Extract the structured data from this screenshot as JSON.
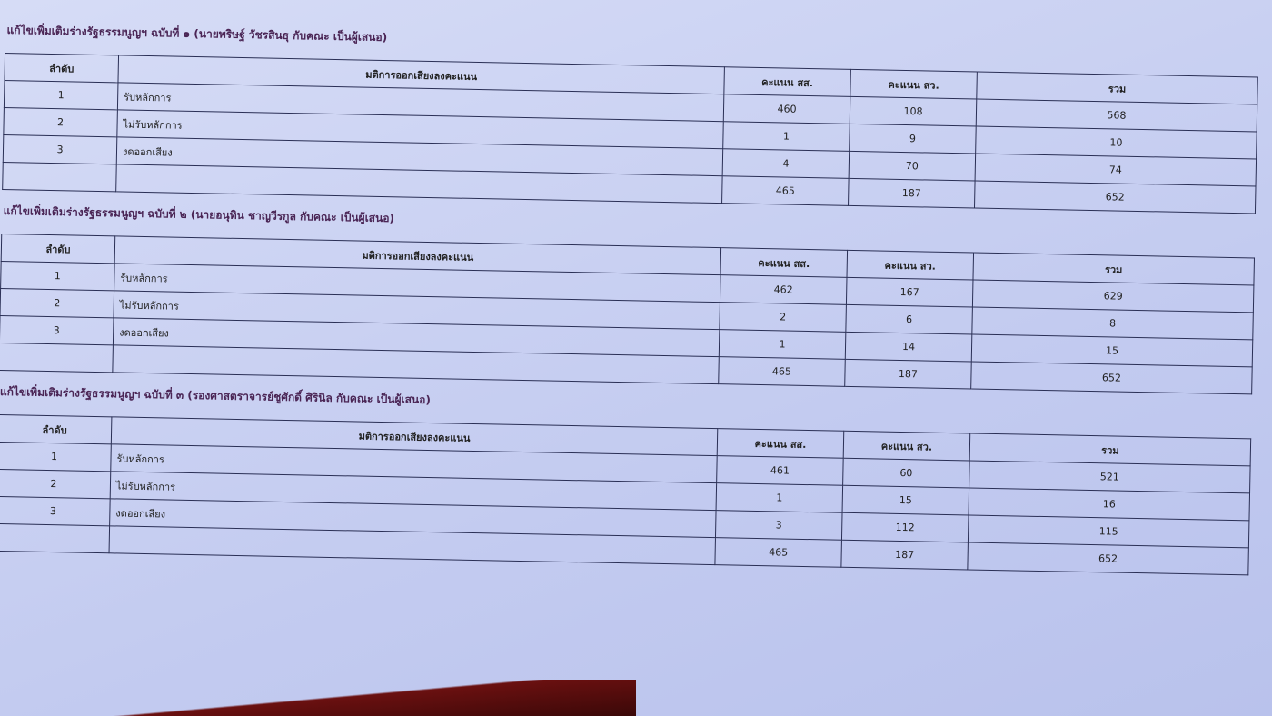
{
  "headers": {
    "no": "ลำดับ",
    "resolution": "มติการออกเสียงลงคะแนน",
    "mp": "คะแนน สส.",
    "senator": "คะแนน สว.",
    "total": "รวม"
  },
  "tables": [
    {
      "title": "แก้ไขเพิ่มเติมร่างรัฐธรรมนูญฯ ฉบับที่ ๑ (นายพริษฐ์ วัชรสินธุ กับคณะ เป็นผู้เสนอ)",
      "rows": [
        {
          "no": "1",
          "label": "รับหลักการ",
          "mp": "460",
          "sen": "108",
          "total": "568"
        },
        {
          "no": "2",
          "label": "ไม่รับหลักการ",
          "mp": "1",
          "sen": "9",
          "total": "10"
        },
        {
          "no": "3",
          "label": "งดออกเสียง",
          "mp": "4",
          "sen": "70",
          "total": "74"
        },
        {
          "no": "",
          "label": "",
          "mp": "465",
          "sen": "187",
          "total": "652"
        }
      ]
    },
    {
      "title": "แก้ไขเพิ่มเติมร่างรัฐธรรมนูญฯ ฉบับที่ ๒ (นายอนุทิน ชาญวีรกูล กับคณะ เป็นผู้เสนอ)",
      "rows": [
        {
          "no": "1",
          "label": "รับหลักการ",
          "mp": "462",
          "sen": "167",
          "total": "629"
        },
        {
          "no": "2",
          "label": "ไม่รับหลักการ",
          "mp": "2",
          "sen": "6",
          "total": "8"
        },
        {
          "no": "3",
          "label": "งดออกเสียง",
          "mp": "1",
          "sen": "14",
          "total": "15"
        },
        {
          "no": "",
          "label": "",
          "mp": "465",
          "sen": "187",
          "total": "652"
        }
      ]
    },
    {
      "title": "แก้ไขเพิ่มเติมร่างรัฐธรรมนูญฯ ฉบับที่ ๓ (รองศาสตราจารย์ชูศักดิ์ ศิรินิล กับคณะ เป็นผู้เสนอ)",
      "rows": [
        {
          "no": "1",
          "label": "รับหลักการ",
          "mp": "461",
          "sen": "60",
          "total": "521"
        },
        {
          "no": "2",
          "label": "ไม่รับหลักการ",
          "mp": "1",
          "sen": "15",
          "total": "16"
        },
        {
          "no": "3",
          "label": "งดออกเสียง",
          "mp": "3",
          "sen": "112",
          "total": "115"
        },
        {
          "no": "",
          "label": "",
          "mp": "465",
          "sen": "187",
          "total": "652"
        }
      ]
    }
  ]
}
